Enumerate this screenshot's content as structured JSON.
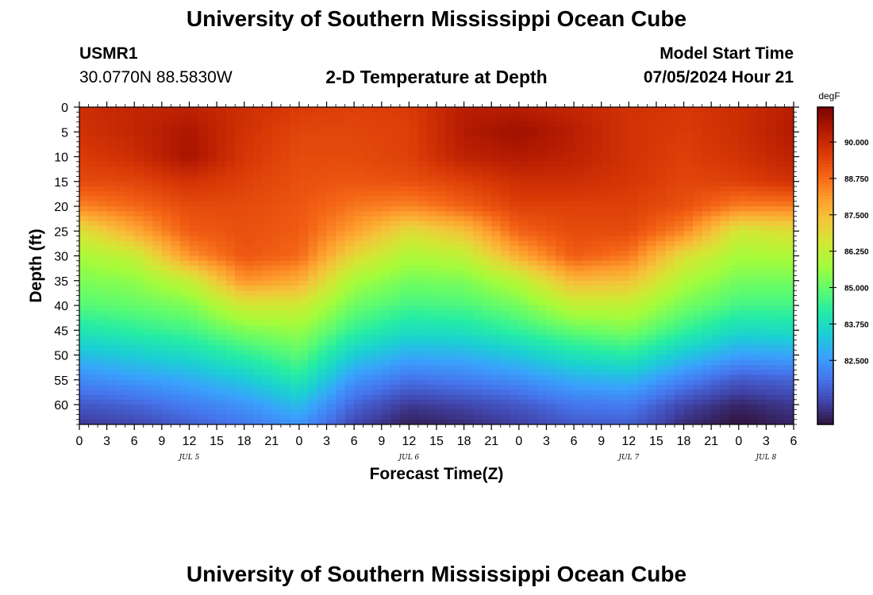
{
  "page": {
    "title_top": "University of Southern Mississippi Ocean Cube",
    "title_bottom": "University of Southern Mississippi Ocean Cube",
    "station_name": "USMR1",
    "station_coords": "30.0770N  88.5830W",
    "plot_title": "2-D Temperature at Depth",
    "model_start_label": "Model Start Time",
    "model_start_value": "07/05/2024 Hour 21"
  },
  "colors": {
    "colormap": [
      "#30123b",
      "#4145ab",
      "#4675ed",
      "#39a2fc",
      "#1bcfd4",
      "#24eca6",
      "#61fc6c",
      "#a4fc3b",
      "#d1e834",
      "#f3c63a",
      "#fe9b2d",
      "#f36315",
      "#d93806",
      "#b11901",
      "#7a0402"
    ]
  },
  "chart_data": {
    "type": "heatmap",
    "title": "2-D Temperature at Depth",
    "xlabel": "Forecast Time(Z)",
    "ylabel": "Depth (ft)",
    "x_unit": "forecast hour since Jul 5 00Z",
    "xlim": [
      0,
      78
    ],
    "x_ticks": [
      0,
      3,
      6,
      9,
      12,
      15,
      18,
      21,
      24,
      27,
      30,
      33,
      36,
      39,
      42,
      45,
      48,
      51,
      54,
      57,
      60,
      63,
      66,
      69,
      72,
      75,
      78
    ],
    "x_tick_labels": [
      "0",
      "3",
      "6",
      "9",
      "12",
      "15",
      "18",
      "21",
      "0",
      "3",
      "6",
      "9",
      "12",
      "15",
      "18",
      "21",
      "0",
      "3",
      "6",
      "9",
      "12",
      "15",
      "18",
      "21",
      "0",
      "3",
      "6"
    ],
    "date_labels": [
      {
        "label": "JUL 5",
        "hour": 12
      },
      {
        "label": "JUL 6",
        "hour": 36
      },
      {
        "label": "JUL 7",
        "hour": 60
      },
      {
        "label": "JUL 8",
        "hour": 75
      }
    ],
    "ylim": [
      0,
      64
    ],
    "y_ticks": [
      0,
      5,
      10,
      15,
      20,
      25,
      30,
      35,
      40,
      45,
      50,
      55,
      60
    ],
    "y_tick_labels": [
      "0",
      "5",
      "10",
      "15",
      "20",
      "25",
      "30",
      "35",
      "40",
      "45",
      "50",
      "55",
      "60"
    ],
    "colorbar": {
      "label": "degF",
      "min": 80.3,
      "max": 91.2,
      "ticks": [
        90.0,
        88.75,
        87.5,
        86.25,
        85.0,
        83.75,
        82.5
      ],
      "tick_labels": [
        "90.000",
        "88.750",
        "87.500",
        "86.250",
        "85.000",
        "83.750",
        "82.500"
      ]
    },
    "field": {
      "description": "Estimated temperature (degF); rows are depths in ft, columns are forecast hours",
      "hours": [
        0,
        6,
        12,
        18,
        24,
        30,
        36,
        42,
        48,
        54,
        60,
        66,
        72,
        78
      ],
      "depths": [
        0,
        5,
        10,
        15,
        20,
        25,
        30,
        35,
        40,
        45,
        50,
        55,
        60,
        64
      ],
      "values": [
        [
          89.9,
          90.1,
          90.2,
          89.9,
          89.6,
          89.5,
          89.6,
          90.3,
          90.3,
          90.1,
          89.8,
          89.7,
          89.9,
          90.3
        ],
        [
          89.8,
          90.1,
          90.5,
          89.8,
          89.4,
          89.4,
          89.5,
          90.4,
          90.7,
          90.3,
          89.8,
          89.6,
          89.9,
          90.4
        ],
        [
          89.6,
          89.9,
          90.6,
          89.7,
          89.3,
          89.3,
          89.5,
          90.2,
          90.4,
          90.2,
          89.8,
          89.5,
          89.8,
          90.2
        ],
        [
          89.3,
          89.4,
          89.8,
          89.5,
          89.2,
          89.1,
          89.2,
          89.5,
          89.9,
          89.9,
          89.7,
          89.4,
          89.5,
          89.8
        ],
        [
          88.4,
          88.8,
          89.3,
          89.3,
          89.1,
          88.6,
          88.4,
          88.9,
          89.5,
          89.5,
          89.5,
          89.2,
          88.5,
          88.5
        ],
        [
          86.7,
          87.8,
          89.0,
          89.2,
          89.0,
          88.0,
          86.8,
          87.4,
          88.9,
          89.3,
          89.3,
          88.4,
          86.5,
          86.8
        ],
        [
          85.8,
          86.3,
          88.2,
          89.1,
          88.8,
          86.9,
          85.9,
          86.2,
          87.8,
          89.0,
          88.6,
          86.8,
          85.8,
          85.9
        ],
        [
          85.3,
          85.5,
          86.3,
          88.2,
          87.8,
          85.8,
          85.2,
          85.3,
          86.1,
          87.6,
          87.4,
          85.9,
          85.2,
          85.2
        ],
        [
          84.8,
          85.0,
          85.3,
          86.5,
          86.5,
          85.1,
          84.6,
          84.7,
          85.2,
          86.2,
          86.2,
          85.2,
          84.6,
          84.6
        ],
        [
          84.0,
          84.3,
          84.6,
          85.3,
          85.6,
          84.4,
          83.8,
          83.9,
          84.4,
          85.0,
          85.3,
          84.4,
          83.7,
          83.8
        ],
        [
          83.1,
          83.4,
          83.7,
          84.3,
          84.9,
          83.4,
          82.8,
          82.9,
          83.3,
          83.9,
          84.2,
          83.3,
          82.6,
          82.7
        ],
        [
          82.2,
          82.5,
          82.8,
          83.3,
          84.1,
          82.4,
          81.8,
          82.0,
          82.3,
          82.8,
          83.0,
          82.1,
          81.4,
          81.6
        ],
        [
          81.4,
          81.6,
          82.0,
          82.4,
          83.1,
          81.6,
          80.9,
          81.1,
          81.4,
          81.9,
          82.0,
          81.1,
          80.6,
          80.9
        ],
        [
          80.9,
          81.1,
          81.5,
          81.9,
          82.4,
          81.1,
          80.5,
          80.7,
          81.0,
          81.4,
          81.5,
          80.7,
          80.3,
          80.6
        ]
      ]
    }
  }
}
